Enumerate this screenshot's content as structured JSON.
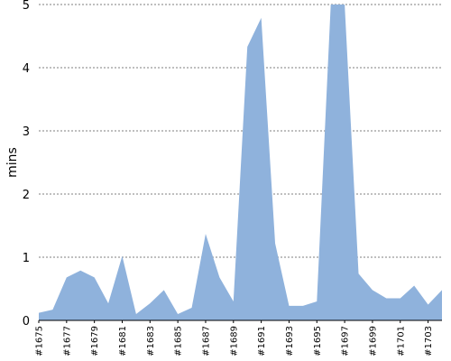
{
  "chart_data": {
    "type": "area",
    "xlabel": "",
    "ylabel": "mins",
    "ylim": [
      0,
      5
    ],
    "yticks": [
      "0",
      "1",
      "2",
      "3",
      "4",
      "5"
    ],
    "grid": true,
    "grid_style": "dotted",
    "color": "#8fb2dc",
    "series": [
      {
        "x": [
          "#1675",
          "#1676",
          "#1677",
          "#1678",
          "#1679",
          "#1680",
          "#1681",
          "#1682",
          "#1683",
          "#1684",
          "#1685",
          "#1686",
          "#1687",
          "#1688",
          "#1689",
          "#1690",
          "#1691",
          "#1692",
          "#1693",
          "#1694",
          "#1695",
          "#1696",
          "#1697",
          "#1698",
          "#1699",
          "#1700",
          "#1701",
          "#1702",
          "#1703",
          "#1704"
        ],
        "values": [
          0.12,
          0.17,
          0.68,
          0.79,
          0.68,
          0.27,
          1.02,
          0.1,
          0.27,
          0.48,
          0.1,
          0.2,
          1.37,
          0.68,
          0.3,
          4.33,
          4.79,
          1.22,
          0.23,
          0.23,
          0.3,
          5.0,
          5.0,
          0.74,
          0.48,
          0.35,
          0.35,
          0.55,
          0.25,
          0.48
        ]
      }
    ],
    "x_tick_labels": [
      "#1675",
      "#1677",
      "#1679",
      "#1681",
      "#1683",
      "#1685",
      "#1687",
      "#1689",
      "#1691",
      "#1693",
      "#1695",
      "#1697",
      "#1699",
      "#1701",
      "#1703"
    ]
  }
}
